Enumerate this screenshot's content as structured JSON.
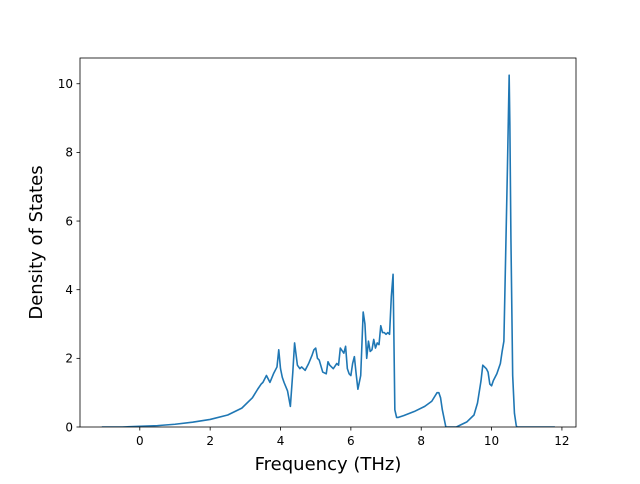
{
  "chart_data": {
    "type": "line",
    "title": "",
    "xlabel": "Frequency (THz)",
    "ylabel": "Density of States",
    "xlim": [
      -1.7,
      12.4
    ],
    "ylim": [
      0,
      10.75
    ],
    "xticks": [
      0,
      2,
      4,
      6,
      8,
      10,
      12
    ],
    "yticks": [
      0,
      2,
      4,
      6,
      8,
      10
    ],
    "grid": false,
    "legend": "none",
    "series_color": "#1f77b4",
    "series": [
      {
        "x": [
          -1.08,
          -0.5,
          0.0,
          0.5,
          1.0,
          1.5,
          2.0,
          2.5,
          2.9,
          3.2,
          3.35,
          3.45,
          3.5,
          3.6,
          3.7,
          3.8,
          3.9,
          3.95,
          4.0,
          4.05,
          4.1,
          4.2,
          4.28,
          4.35,
          4.4,
          4.48,
          4.55,
          4.6,
          4.7,
          4.8,
          4.9,
          4.95,
          5.0,
          5.05,
          5.1,
          5.2,
          5.3,
          5.35,
          5.4,
          5.5,
          5.6,
          5.65,
          5.7,
          5.8,
          5.85,
          5.9,
          5.95,
          6.0,
          6.05,
          6.1,
          6.15,
          6.2,
          6.28,
          6.35,
          6.4,
          6.45,
          6.5,
          6.55,
          6.6,
          6.65,
          6.7,
          6.75,
          6.8,
          6.85,
          6.9,
          6.95,
          7.0,
          7.05,
          7.1,
          7.15,
          7.2,
          7.25,
          7.3,
          7.35,
          7.5,
          7.8,
          8.1,
          8.3,
          8.45,
          8.5,
          8.55,
          8.6,
          8.7,
          8.8,
          8.9,
          9.0,
          9.1,
          9.3,
          9.5,
          9.6,
          9.7,
          9.75,
          9.8,
          9.85,
          9.9,
          9.95,
          10.0,
          10.05,
          10.15,
          10.25,
          10.3,
          10.35,
          10.4,
          10.45,
          10.5,
          10.52,
          10.55,
          10.6,
          10.65,
          10.7,
          10.72,
          10.8,
          11.2,
          11.8
        ],
        "y": [
          0.0,
          0.0,
          0.02,
          0.04,
          0.08,
          0.14,
          0.22,
          0.35,
          0.55,
          0.85,
          1.1,
          1.25,
          1.3,
          1.5,
          1.3,
          1.55,
          1.75,
          2.25,
          1.7,
          1.45,
          1.3,
          1.05,
          0.6,
          1.6,
          2.45,
          1.8,
          1.7,
          1.75,
          1.65,
          1.85,
          2.1,
          2.25,
          2.3,
          2.0,
          1.95,
          1.6,
          1.55,
          1.9,
          1.8,
          1.7,
          1.85,
          1.8,
          2.3,
          2.15,
          2.35,
          1.7,
          1.55,
          1.5,
          1.85,
          2.05,
          1.55,
          1.1,
          1.5,
          3.35,
          3.0,
          2.0,
          2.5,
          2.2,
          2.25,
          2.55,
          2.3,
          2.45,
          2.4,
          2.95,
          2.75,
          2.75,
          2.7,
          2.75,
          2.7,
          3.8,
          4.45,
          0.5,
          0.28,
          0.28,
          0.33,
          0.45,
          0.6,
          0.75,
          1.0,
          1.0,
          0.85,
          0.5,
          0.0,
          0.0,
          0.0,
          0.0,
          0.05,
          0.15,
          0.35,
          0.7,
          1.35,
          1.8,
          1.75,
          1.7,
          1.6,
          1.25,
          1.2,
          1.35,
          1.55,
          1.85,
          2.2,
          2.5,
          5.0,
          7.5,
          10.25,
          8.8,
          5.5,
          1.5,
          0.4,
          0.05,
          0.0,
          0.0,
          0.0,
          0.0
        ]
      }
    ]
  }
}
